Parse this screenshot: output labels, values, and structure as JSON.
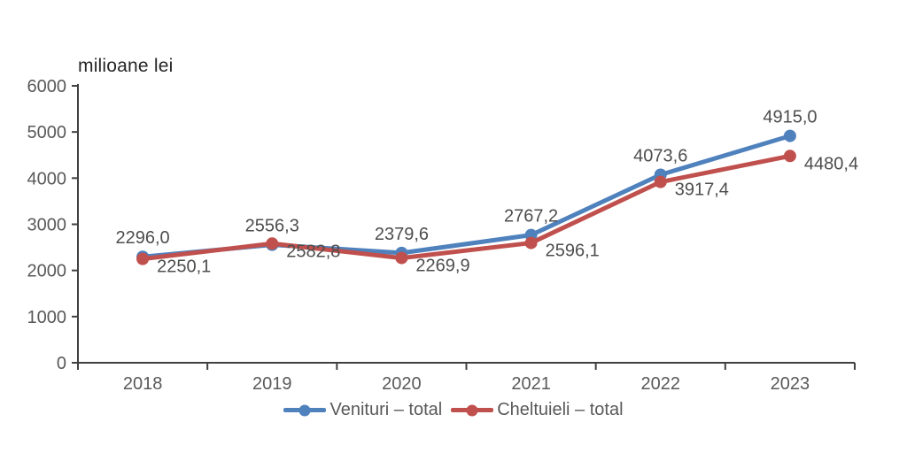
{
  "chart_data": {
    "type": "line",
    "title": "milioane lei",
    "xlabel": "",
    "ylabel": "milioane lei",
    "categories": [
      "2018",
      "2019",
      "2020",
      "2021",
      "2022",
      "2023"
    ],
    "y_ticks": [
      0,
      1000,
      2000,
      3000,
      4000,
      5000,
      6000
    ],
    "ylim": [
      0,
      6000
    ],
    "grid": false,
    "legend_position": "bottom",
    "series": [
      {
        "name": "Venituri – total",
        "color": "#4F81BD",
        "values": [
          2296.0,
          2556.3,
          2379.6,
          2767.2,
          4073.6,
          4915.0
        ],
        "labels": [
          "2296,0",
          "2556,3",
          "2379,6",
          "2767,2",
          "4073,6",
          "4915,0"
        ]
      },
      {
        "name": "Cheltuieli – total",
        "color": "#C0504D",
        "values": [
          2250.1,
          2582.8,
          2269.9,
          2596.1,
          3917.4,
          4480.4
        ],
        "labels": [
          "2250,1",
          "2582,8",
          "2269,9",
          "2596,1",
          "3917,4",
          "4480,4"
        ]
      }
    ]
  },
  "colors": {
    "axis_line": "#404040",
    "axis_tick_label": "#595959",
    "data_label": "#4d4d4d",
    "title_text": "#262626",
    "background": "#ffffff"
  }
}
